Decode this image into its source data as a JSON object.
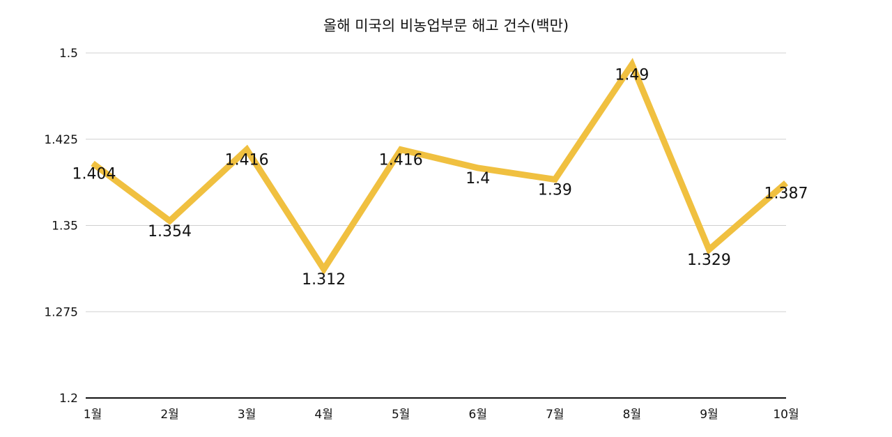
{
  "chart_data": {
    "type": "line",
    "title": "올해 미국의 비농업부문 해고 건수(백만)",
    "xlabel": "",
    "ylabel": "",
    "categories": [
      "1월",
      "2월",
      "3월",
      "4월",
      "5월",
      "6월",
      "7월",
      "8월",
      "9월",
      "10월"
    ],
    "series": [
      {
        "values": [
          1.404,
          1.354,
          1.416,
          1.312,
          1.416,
          1.4,
          1.39,
          1.49,
          1.329,
          1.387
        ],
        "data_labels": [
          "1.404",
          "1.354",
          "1.416",
          "1.312",
          "1.416",
          "1.4",
          "1.39",
          "1.49",
          "1.329",
          "1.387"
        ],
        "color": "#F0C040"
      }
    ],
    "ylim": [
      1.2,
      1.5
    ],
    "yticks": [
      "1.2",
      "1.275",
      "1.35",
      "1.425",
      "1.5"
    ],
    "grid": true,
    "legend": "none"
  }
}
